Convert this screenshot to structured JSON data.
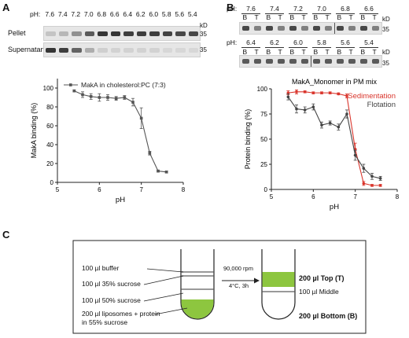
{
  "panel_a": {
    "label": "A",
    "ph_prefix": "pH:",
    "ph_values": [
      "7.6",
      "7.4",
      "7.2",
      "7.0",
      "6.8",
      "6.6",
      "6.4",
      "6.2",
      "6.0",
      "5.8",
      "5.6",
      "5.4"
    ],
    "pellet_label": "Pellet",
    "supernatant_label": "Supernatant",
    "kd_label": "kD",
    "marker_35": "35",
    "pellet_intensity": [
      0.18,
      0.25,
      0.45,
      0.75,
      0.95,
      0.95,
      0.9,
      0.9,
      0.9,
      0.88,
      0.85,
      0.85
    ],
    "supernatant_intensity": [
      0.95,
      0.9,
      0.7,
      0.3,
      0.12,
      0.1,
      0.1,
      0.1,
      0.1,
      0.08,
      0.08,
      0.08
    ]
  },
  "panel_b": {
    "label": "B",
    "ph_prefix": "pH:",
    "row1_ph": [
      "7.6",
      "7.4",
      "7.2",
      "7.0",
      "6.8",
      "6.6"
    ],
    "row2_ph": [
      "6.4",
      "6.2",
      "6.0",
      "5.8",
      "5.6",
      "5.4"
    ],
    "b_label": "B",
    "t_label": "T",
    "kd_label": "kD",
    "marker_35": "35"
  },
  "panel_c": {
    "label": "C",
    "buffer": "100 µl buffer",
    "sucrose35": "100 µl 35% sucrose",
    "sucrose50": "100 µl 50% sucrose",
    "liposomes_line1": "200 µl liposomes + protein",
    "liposomes_line2": "in 55% sucrose",
    "speed": "90,000 rpm",
    "conditions": "4°C, 3h",
    "top": "200 µl Top (T)",
    "middle": "100 µl Middle",
    "bottom": "200 µl Bottom (B)",
    "green": "#8dc63f"
  },
  "chart_data": [
    {
      "type": "line",
      "panel": "A",
      "xlabel": "pH",
      "ylabel": "MakA binding (%)",
      "xlim": [
        5,
        8
      ],
      "ylim": [
        0,
        110
      ],
      "xticks": [
        5,
        6,
        7,
        8
      ],
      "yticks": [
        0,
        20,
        40,
        60,
        80,
        100
      ],
      "grid": false,
      "legend_position": "top",
      "series": [
        {
          "name": "MakA in cholesterol:PC (7:3)",
          "color": "#555555",
          "x": [
            5.4,
            5.6,
            5.8,
            6.0,
            6.2,
            6.4,
            6.6,
            6.8,
            7.0,
            7.2,
            7.4,
            7.6
          ],
          "y": [
            97,
            93,
            91,
            90,
            90,
            89,
            90,
            85,
            68,
            31,
            12,
            11
          ],
          "err": [
            1,
            3,
            3,
            4,
            3,
            2,
            2,
            4,
            11,
            2,
            1,
            1
          ]
        }
      ]
    },
    {
      "type": "line",
      "panel": "B",
      "title": "MakA_Monomer in PM mix",
      "xlabel": "pH",
      "ylabel": "Protein binding (%)",
      "xlim": [
        5,
        8
      ],
      "ylim": [
        0,
        100
      ],
      "xticks": [
        5,
        6,
        7,
        8
      ],
      "yticks": [
        0,
        25,
        50,
        75,
        100
      ],
      "grid": false,
      "legend_position": "top-right",
      "series": [
        {
          "name": "Sedimentation",
          "color": "#d9342b",
          "x": [
            5.4,
            5.6,
            5.8,
            6.0,
            6.2,
            6.4,
            6.6,
            6.8,
            7.0,
            7.2,
            7.4,
            7.6
          ],
          "y": [
            96,
            97,
            97,
            96,
            96,
            96,
            95,
            93,
            40,
            6,
            4,
            4
          ],
          "err": [
            2,
            2,
            1,
            1,
            1,
            1,
            1,
            2,
            6,
            2,
            1,
            1
          ]
        },
        {
          "name": "Flotation",
          "color": "#444444",
          "x": [
            5.4,
            5.6,
            5.8,
            6.0,
            6.2,
            6.4,
            6.6,
            6.8,
            7.0,
            7.2,
            7.4,
            7.6
          ],
          "y": [
            92,
            80,
            79,
            82,
            64,
            66,
            62,
            75,
            34,
            21,
            13,
            11
          ],
          "err": [
            3,
            4,
            3,
            3,
            3,
            2,
            3,
            4,
            5,
            4,
            3,
            2
          ]
        }
      ]
    }
  ]
}
